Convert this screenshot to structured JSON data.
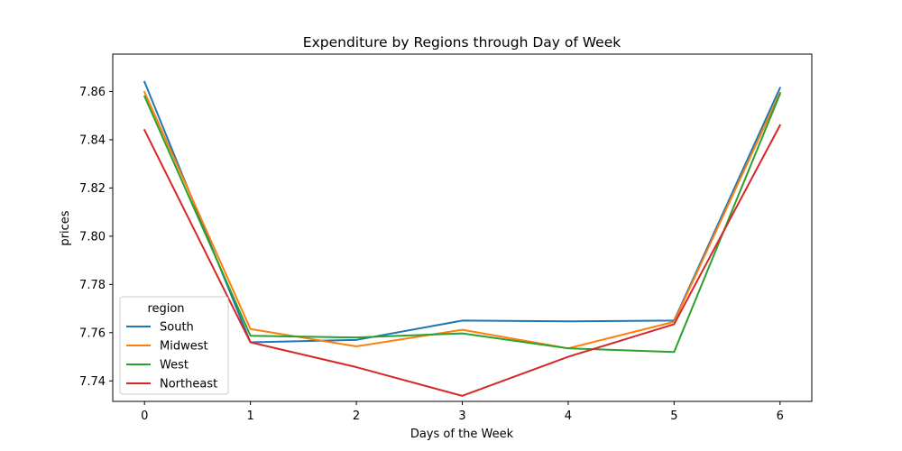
{
  "chart_data": {
    "type": "line",
    "title": "Expenditure by Regions through Day of Week",
    "xlabel": "Days of the Week",
    "ylabel": "prices",
    "x": [
      0,
      1,
      2,
      3,
      4,
      5,
      6
    ],
    "xlim": [
      -0.3,
      6.3
    ],
    "ylim": [
      7.7315,
      7.8755
    ],
    "yticks": [
      7.74,
      7.76,
      7.78,
      7.8,
      7.82,
      7.84,
      7.86
    ],
    "ytick_labels": [
      "7.74",
      "7.76",
      "7.78",
      "7.80",
      "7.82",
      "7.84",
      "7.86"
    ],
    "xtick_labels": [
      "0",
      "1",
      "2",
      "3",
      "4",
      "5",
      "6"
    ],
    "grid": false,
    "legend": {
      "title": "region",
      "placement": "lower-left"
    },
    "series": [
      {
        "name": "South",
        "color": "#1f77b4",
        "values": [
          7.864,
          7.756,
          7.757,
          7.765,
          7.7647,
          7.765,
          7.8615
        ]
      },
      {
        "name": "Midwest",
        "color": "#ff7f0e",
        "values": [
          7.8598,
          7.7615,
          7.7543,
          7.7612,
          7.7535,
          7.7645,
          7.8595
        ]
      },
      {
        "name": "West",
        "color": "#2ca02c",
        "values": [
          7.858,
          7.7587,
          7.758,
          7.7597,
          7.7535,
          7.752,
          7.859
        ]
      },
      {
        "name": "Northeast",
        "color": "#d62728",
        "values": [
          7.844,
          7.756,
          7.7457,
          7.7338,
          7.75,
          7.7635,
          7.846
        ]
      }
    ]
  }
}
